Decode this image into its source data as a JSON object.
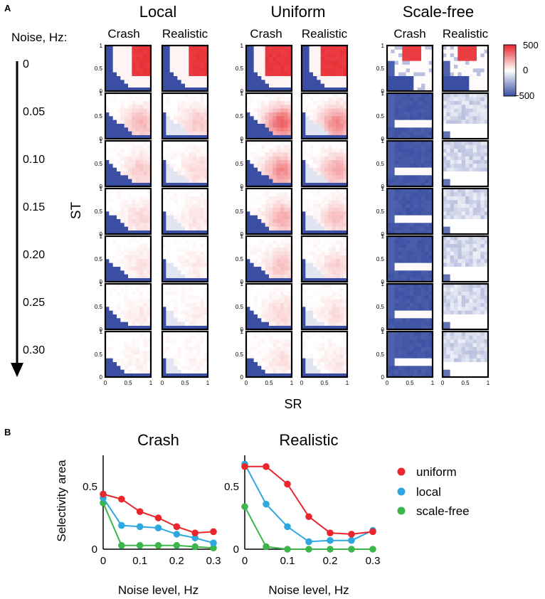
{
  "panel_a": {
    "label": "A",
    "noise_heading": "Noise, Hz:",
    "noise_levels": [
      "0",
      "0.05",
      "0.10",
      "0.15",
      "0.20",
      "0.25",
      "0.30"
    ],
    "groups": [
      "Local",
      "Uniform",
      "Scale-free"
    ],
    "subtitles": [
      "Crash",
      "Realistic"
    ],
    "ylabel": "ST",
    "xlabel": "SR",
    "y_ticks": [
      "1",
      "0.5",
      "0"
    ],
    "x_ticks": [
      "0",
      "0.5",
      "1"
    ],
    "colorbar": {
      "ticks": [
        "500",
        "0",
        "−500"
      ],
      "max_color": "#e8262c",
      "mid_color": "#ffffff",
      "min_color": "#3a4fa3"
    }
  },
  "panel_b": {
    "label": "B",
    "ylabel": "Selectivity area",
    "legend": [
      "uniform",
      "local",
      "scale-free"
    ],
    "colors": {
      "uniform": "#e8262c",
      "local": "#2ea8df",
      "scale-free": "#3cb54a"
    }
  },
  "chart_data": [
    {
      "type": "heatmap",
      "panel": "A",
      "groups": [
        "Local",
        "Uniform",
        "Scale-free"
      ],
      "conditions": [
        "Crash",
        "Realistic"
      ],
      "noise_levels_hz": [
        0,
        0.05,
        0.1,
        0.15,
        0.2,
        0.25,
        0.3
      ],
      "x": "SR",
      "y": "ST",
      "xlim": [
        0,
        1
      ],
      "ylim": [
        0,
        1
      ],
      "color_range": [
        -500,
        500
      ]
    },
    {
      "type": "line",
      "title": "Crash",
      "xlabel": "Noise level, Hz",
      "ylabel": "Selectivity area",
      "x": [
        0,
        0.05,
        0.1,
        0.15,
        0.2,
        0.25,
        0.3
      ],
      "xticks": [
        "0",
        "0.1",
        "0.2",
        "0.3"
      ],
      "yticks": [
        "0",
        "0.5"
      ],
      "ylim": [
        0,
        0.75
      ],
      "series": [
        {
          "name": "uniform",
          "values": [
            0.44,
            0.4,
            0.3,
            0.25,
            0.18,
            0.13,
            0.14
          ]
        },
        {
          "name": "local",
          "values": [
            0.41,
            0.19,
            0.18,
            0.17,
            0.12,
            0.09,
            0.05
          ]
        },
        {
          "name": "scale-free",
          "values": [
            0.37,
            0.03,
            0.03,
            0.03,
            0.03,
            0.02,
            0.01
          ]
        }
      ]
    },
    {
      "type": "line",
      "title": "Realistic",
      "xlabel": "Noise level, Hz",
      "ylabel": "",
      "x": [
        0,
        0.05,
        0.1,
        0.15,
        0.2,
        0.25,
        0.3
      ],
      "xticks": [
        "0",
        "0.1",
        "0.2",
        "0.3"
      ],
      "yticks": [
        "0",
        "0.5"
      ],
      "ylim": [
        0,
        0.75
      ],
      "series": [
        {
          "name": "uniform",
          "values": [
            0.66,
            0.66,
            0.52,
            0.26,
            0.13,
            0.12,
            0.14
          ]
        },
        {
          "name": "local",
          "values": [
            0.68,
            0.36,
            0.18,
            0.06,
            0.07,
            0.07,
            0.15
          ]
        },
        {
          "name": "scale-free",
          "values": [
            0.34,
            0.02,
            0.0,
            0.0,
            0.0,
            0.0,
            0.0
          ]
        }
      ]
    }
  ]
}
